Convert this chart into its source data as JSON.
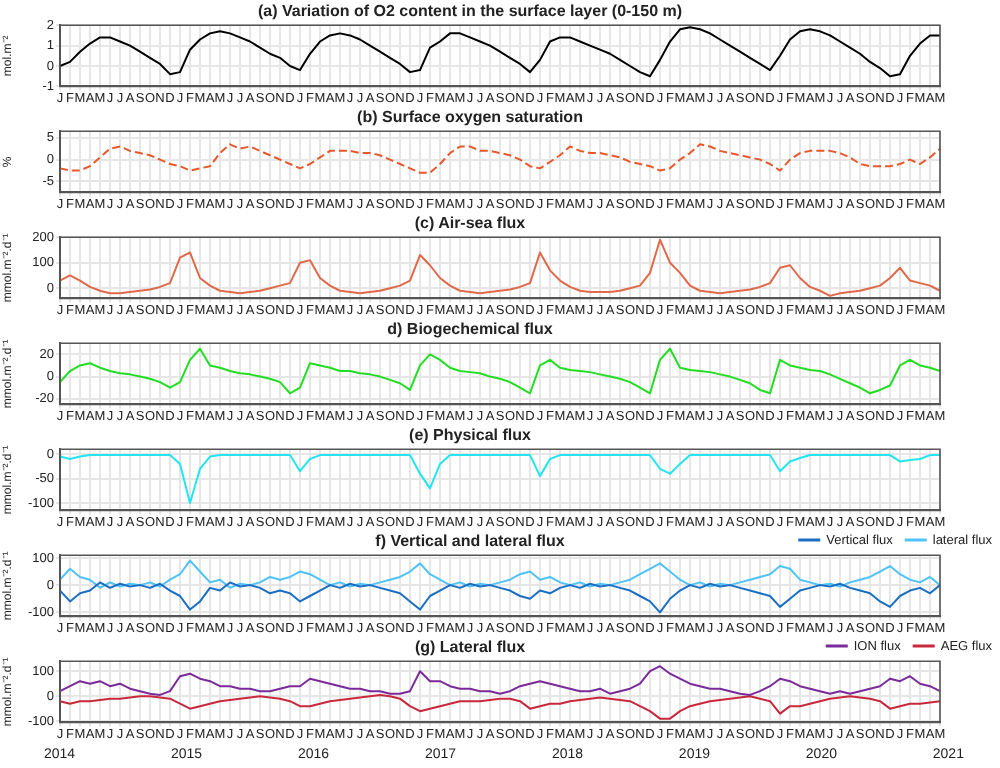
{
  "chart_data": [
    {
      "type": "line",
      "title": "(a) Variation of O2 content in the surface layer (0-150 m)",
      "ylabel": "mol.m⁻²",
      "color": "#000000",
      "grid": true,
      "categories": [
        "J",
        "F",
        "M",
        "A",
        "M",
        "J",
        "J",
        "A",
        "S",
        "O",
        "N",
        "D",
        "J",
        "F",
        "M",
        "A",
        "M",
        "J",
        "J",
        "A",
        "S",
        "O",
        "N",
        "D",
        "J",
        "F",
        "M",
        "A",
        "M",
        "J",
        "J",
        "A",
        "S",
        "O",
        "N",
        "D",
        "J",
        "F",
        "M",
        "A",
        "M",
        "J",
        "J",
        "A",
        "S",
        "O",
        "N",
        "D",
        "J",
        "F",
        "M",
        "A",
        "M",
        "J",
        "J",
        "A",
        "S",
        "O",
        "N",
        "D",
        "J",
        "F",
        "M",
        "A",
        "M",
        "J",
        "J",
        "A",
        "S",
        "O",
        "N",
        "D",
        "J",
        "F",
        "M",
        "A",
        "M",
        "J",
        "J",
        "A",
        "S",
        "O",
        "N",
        "D",
        "J",
        "F",
        "M",
        "A",
        "M"
      ],
      "values": [
        0.0,
        0.2,
        0.7,
        1.1,
        1.4,
        1.4,
        1.2,
        1.0,
        0.7,
        0.4,
        0.1,
        -0.4,
        -0.3,
        0.8,
        1.3,
        1.6,
        1.7,
        1.6,
        1.4,
        1.2,
        0.9,
        0.6,
        0.4,
        0.0,
        -0.2,
        0.6,
        1.2,
        1.5,
        1.6,
        1.5,
        1.3,
        1.0,
        0.7,
        0.4,
        0.1,
        -0.3,
        -0.2,
        0.9,
        1.2,
        1.6,
        1.6,
        1.4,
        1.2,
        1.0,
        0.7,
        0.4,
        0.1,
        -0.3,
        0.3,
        1.2,
        1.4,
        1.4,
        1.2,
        1.0,
        0.8,
        0.6,
        0.3,
        0.0,
        -0.3,
        -0.5,
        0.3,
        1.2,
        1.8,
        1.9,
        1.8,
        1.6,
        1.3,
        1.0,
        0.7,
        0.4,
        0.1,
        -0.2,
        0.5,
        1.3,
        1.7,
        1.8,
        1.7,
        1.5,
        1.2,
        0.9,
        0.6,
        0.2,
        -0.1,
        -0.5,
        -0.4,
        0.5,
        1.1,
        1.5,
        1.5
      ],
      "ylim": [
        -1,
        2
      ],
      "yticks": [
        -1,
        0,
        1,
        2
      ]
    },
    {
      "type": "line",
      "title": "(b) Surface oxygen saturation",
      "ylabel": "%",
      "color": "#e8582a",
      "line_style": "dashed",
      "grid": true,
      "categories": [
        "J",
        "F",
        "M",
        "A",
        "M",
        "J",
        "J",
        "A",
        "S",
        "O",
        "N",
        "D",
        "J",
        "F",
        "M",
        "A",
        "M",
        "J",
        "J",
        "A",
        "S",
        "O",
        "N",
        "D",
        "J",
        "F",
        "M",
        "A",
        "M",
        "J",
        "J",
        "A",
        "S",
        "O",
        "N",
        "D",
        "J",
        "F",
        "M",
        "A",
        "M",
        "J",
        "J",
        "A",
        "S",
        "O",
        "N",
        "D",
        "J",
        "F",
        "M",
        "A",
        "M",
        "J",
        "J",
        "A",
        "S",
        "O",
        "N",
        "D",
        "J",
        "F",
        "M",
        "A",
        "M",
        "J",
        "J",
        "A",
        "S",
        "O",
        "N",
        "D",
        "J",
        "F",
        "M",
        "A",
        "M",
        "J",
        "J",
        "A",
        "S",
        "O",
        "N",
        "D",
        "J",
        "F",
        "M",
        "A",
        "M"
      ],
      "values": [
        -2,
        -2.5,
        -2.5,
        -1.5,
        0.5,
        2.5,
        3,
        2,
        1.5,
        1,
        0,
        -1,
        -1.5,
        -2.5,
        -2,
        -1.5,
        1.5,
        3.5,
        2.5,
        3,
        2,
        1,
        0,
        -1,
        -2,
        -1,
        0.5,
        2,
        2,
        2,
        1.5,
        1.5,
        1,
        0,
        -1,
        -2,
        -3,
        -3,
        -1,
        1.5,
        3,
        3,
        2,
        2,
        1.5,
        1,
        0,
        -1.5,
        -2,
        -0.5,
        1,
        3,
        2,
        1.5,
        1.5,
        1,
        0.5,
        -0.5,
        -1,
        -1.5,
        -2.5,
        -2,
        0,
        1.5,
        3.5,
        3,
        2,
        1.5,
        1,
        0.5,
        0,
        -1,
        -2.5,
        0,
        1.5,
        2,
        2,
        2,
        1.5,
        0.5,
        -1,
        -1.5,
        -1.5,
        -1.5,
        -1,
        0,
        -1,
        0.5,
        2.5
      ],
      "ylim": [
        -7.5,
        6.5
      ],
      "yticks": [
        -5,
        0,
        5
      ]
    },
    {
      "type": "line",
      "title": "(c) Air-sea flux",
      "ylabel": "mmol.m⁻².d⁻¹",
      "color": "#e0694a",
      "grid": true,
      "categories": [
        "J",
        "F",
        "M",
        "A",
        "M",
        "J",
        "J",
        "A",
        "S",
        "O",
        "N",
        "D",
        "J",
        "F",
        "M",
        "A",
        "M",
        "J",
        "J",
        "A",
        "S",
        "O",
        "N",
        "D",
        "J",
        "F",
        "M",
        "A",
        "M",
        "J",
        "J",
        "A",
        "S",
        "O",
        "N",
        "D",
        "J",
        "F",
        "M",
        "A",
        "M",
        "J",
        "J",
        "A",
        "S",
        "O",
        "N",
        "D",
        "J",
        "F",
        "M",
        "A",
        "M",
        "J",
        "J",
        "A",
        "S",
        "O",
        "N",
        "D",
        "J",
        "F",
        "M",
        "A",
        "M",
        "J",
        "J",
        "A",
        "S",
        "O",
        "N",
        "D",
        "J",
        "F",
        "M",
        "A",
        "M",
        "J",
        "J",
        "A",
        "S",
        "O",
        "N",
        "D",
        "J",
        "F",
        "M",
        "A",
        "M"
      ],
      "values": [
        30,
        50,
        30,
        5,
        -10,
        -20,
        -20,
        -15,
        -10,
        -5,
        5,
        20,
        120,
        140,
        40,
        10,
        -10,
        -15,
        -20,
        -15,
        -10,
        0,
        10,
        20,
        100,
        110,
        40,
        10,
        -10,
        -15,
        -20,
        -15,
        -10,
        0,
        10,
        30,
        130,
        90,
        40,
        10,
        -10,
        -15,
        -20,
        -15,
        -10,
        -5,
        5,
        20,
        140,
        70,
        30,
        5,
        -10,
        -15,
        -15,
        -15,
        -10,
        0,
        10,
        60,
        190,
        100,
        60,
        10,
        -10,
        -15,
        -20,
        -15,
        -10,
        -5,
        5,
        20,
        80,
        90,
        40,
        5,
        -10,
        -30,
        -20,
        -15,
        -10,
        0,
        10,
        40,
        80,
        30,
        20,
        10,
        -10
      ],
      "ylim": [
        -40,
        200
      ],
      "yticks": [
        0,
        100,
        200
      ]
    },
    {
      "type": "line",
      "title": "d) Biogechemical flux",
      "ylabel": "mmol.m⁻².d⁻¹",
      "color": "#22dd22",
      "grid": true,
      "categories": [
        "J",
        "F",
        "M",
        "A",
        "M",
        "J",
        "J",
        "A",
        "S",
        "O",
        "N",
        "D",
        "J",
        "F",
        "M",
        "A",
        "M",
        "J",
        "J",
        "A",
        "S",
        "O",
        "N",
        "D",
        "J",
        "F",
        "M",
        "A",
        "M",
        "J",
        "J",
        "A",
        "S",
        "O",
        "N",
        "D",
        "J",
        "F",
        "M",
        "A",
        "M",
        "J",
        "J",
        "A",
        "S",
        "O",
        "N",
        "D",
        "J",
        "F",
        "M",
        "A",
        "M",
        "J",
        "J",
        "A",
        "S",
        "O",
        "N",
        "D",
        "J",
        "F",
        "M",
        "A",
        "M",
        "J",
        "J",
        "A",
        "S",
        "O",
        "N",
        "D",
        "J",
        "F",
        "M",
        "A",
        "M",
        "J",
        "J",
        "A",
        "S",
        "O",
        "N",
        "D",
        "J",
        "F",
        "M",
        "A",
        "M"
      ],
      "values": [
        -5,
        5,
        10,
        12,
        8,
        5,
        3,
        2,
        0,
        -2,
        -5,
        -10,
        -5,
        15,
        25,
        10,
        8,
        5,
        3,
        2,
        0,
        -2,
        -5,
        -15,
        -10,
        12,
        10,
        8,
        5,
        5,
        3,
        2,
        0,
        -3,
        -6,
        -12,
        10,
        20,
        15,
        8,
        5,
        4,
        3,
        0,
        -2,
        -5,
        -10,
        -15,
        10,
        15,
        8,
        6,
        5,
        4,
        2,
        0,
        -2,
        -5,
        -10,
        -15,
        15,
        25,
        8,
        6,
        5,
        4,
        2,
        0,
        -3,
        -6,
        -12,
        -15,
        15,
        10,
        8,
        6,
        5,
        2,
        -2,
        -6,
        -10,
        -15,
        -12,
        -8,
        10,
        15,
        10,
        8,
        5
      ],
      "ylim": [
        -25,
        30
      ],
      "yticks": [
        -20,
        0,
        20
      ]
    },
    {
      "type": "line",
      "title": "(e) Physical flux",
      "ylabel": "mmol.m⁻².d⁻¹",
      "color": "#22e5f0",
      "grid": true,
      "categories": [
        "J",
        "F",
        "M",
        "A",
        "M",
        "J",
        "J",
        "A",
        "S",
        "O",
        "N",
        "D",
        "J",
        "F",
        "M",
        "A",
        "M",
        "J",
        "J",
        "A",
        "S",
        "O",
        "N",
        "D",
        "J",
        "F",
        "M",
        "A",
        "M",
        "J",
        "J",
        "A",
        "S",
        "O",
        "N",
        "D",
        "J",
        "F",
        "M",
        "A",
        "M",
        "J",
        "J",
        "A",
        "S",
        "O",
        "N",
        "D",
        "J",
        "F",
        "M",
        "A",
        "M",
        "J",
        "J",
        "A",
        "S",
        "O",
        "N",
        "D",
        "J",
        "F",
        "M",
        "A",
        "M",
        "J",
        "J",
        "A",
        "S",
        "O",
        "N",
        "D",
        "J",
        "F",
        "M",
        "A",
        "M",
        "J",
        "J",
        "A",
        "S",
        "O",
        "N",
        "D",
        "J",
        "F",
        "M",
        "A",
        "M"
      ],
      "values": [
        -5,
        -10,
        -5,
        -2,
        -2,
        -2,
        -2,
        -2,
        -2,
        -2,
        -2,
        -2,
        -20,
        -100,
        -30,
        -5,
        -2,
        -2,
        -2,
        -2,
        -2,
        -2,
        -2,
        -2,
        -35,
        -10,
        -2,
        -2,
        -2,
        -2,
        -2,
        -2,
        -2,
        -2,
        -2,
        -2,
        -40,
        -70,
        -20,
        -2,
        -2,
        -2,
        -2,
        -2,
        -2,
        -2,
        -2,
        -2,
        -45,
        -10,
        -2,
        -2,
        -2,
        -2,
        -2,
        -2,
        -2,
        -2,
        -2,
        -2,
        -30,
        -40,
        -20,
        -2,
        -2,
        -2,
        -2,
        -2,
        -2,
        -2,
        -2,
        -2,
        -35,
        -15,
        -8,
        -2,
        -2,
        -2,
        -2,
        -2,
        -2,
        -2,
        -2,
        -2,
        -15,
        -12,
        -10,
        -2,
        -2
      ],
      "ylim": [
        -115,
        10
      ],
      "yticks": [
        -100,
        -50,
        0
      ]
    },
    {
      "type": "line",
      "title": "f) Vertical and lateral flux",
      "ylabel": "mmol.m⁻².d⁻¹",
      "legend": "top right",
      "grid": true,
      "categories": [
        "J",
        "F",
        "M",
        "A",
        "M",
        "J",
        "J",
        "A",
        "S",
        "O",
        "N",
        "D",
        "J",
        "F",
        "M",
        "A",
        "M",
        "J",
        "J",
        "A",
        "S",
        "O",
        "N",
        "D",
        "J",
        "F",
        "M",
        "A",
        "M",
        "J",
        "J",
        "A",
        "S",
        "O",
        "N",
        "D",
        "J",
        "F",
        "M",
        "A",
        "M",
        "J",
        "J",
        "A",
        "S",
        "O",
        "N",
        "D",
        "J",
        "F",
        "M",
        "A",
        "M",
        "J",
        "J",
        "A",
        "S",
        "O",
        "N",
        "D",
        "J",
        "F",
        "M",
        "A",
        "M",
        "J",
        "J",
        "A",
        "S",
        "O",
        "N",
        "D",
        "J",
        "F",
        "M",
        "A",
        "M",
        "J",
        "J",
        "A",
        "S",
        "O",
        "N",
        "D",
        "J",
        "F",
        "M",
        "A",
        "M"
      ],
      "series": [
        {
          "name": "Vertical flux",
          "color": "#1a6fc4",
          "values": [
            -20,
            -60,
            -30,
            -20,
            10,
            -10,
            5,
            -5,
            0,
            -10,
            5,
            -20,
            -40,
            -90,
            -60,
            -10,
            -20,
            10,
            -5,
            0,
            -10,
            -30,
            -20,
            -30,
            -60,
            -40,
            -20,
            0,
            -10,
            5,
            -5,
            0,
            -10,
            -20,
            -30,
            -60,
            -90,
            -40,
            -20,
            0,
            -10,
            5,
            -5,
            0,
            -10,
            -20,
            -40,
            -50,
            -20,
            -30,
            -10,
            0,
            -10,
            5,
            -5,
            0,
            -10,
            -20,
            -40,
            -60,
            -100,
            -50,
            -20,
            0,
            -10,
            5,
            -5,
            0,
            -10,
            -20,
            -30,
            -40,
            -80,
            -50,
            -20,
            -10,
            0,
            -5,
            5,
            -10,
            -20,
            -30,
            -60,
            -80,
            -40,
            -20,
            -10,
            -30,
            0
          ]
        },
        {
          "name": "lateral flux",
          "color": "#4fc3f7",
          "values": [
            20,
            60,
            30,
            20,
            -10,
            10,
            -5,
            5,
            0,
            10,
            -5,
            20,
            40,
            90,
            50,
            10,
            20,
            -10,
            5,
            0,
            10,
            30,
            20,
            30,
            50,
            40,
            20,
            0,
            10,
            -5,
            5,
            0,
            10,
            20,
            30,
            50,
            80,
            40,
            20,
            0,
            10,
            -5,
            5,
            0,
            10,
            20,
            40,
            50,
            20,
            30,
            10,
            0,
            10,
            -5,
            5,
            0,
            10,
            20,
            40,
            60,
            80,
            50,
            20,
            0,
            10,
            -5,
            5,
            0,
            10,
            20,
            30,
            40,
            70,
            60,
            20,
            10,
            0,
            5,
            -5,
            10,
            20,
            30,
            50,
            70,
            40,
            20,
            10,
            30,
            0
          ]
        }
      ],
      "ylim": [
        -115,
        110
      ],
      "yticks": [
        -100,
        0,
        100
      ]
    },
    {
      "type": "line",
      "title": "(g) Lateral flux",
      "ylabel": "mmol.m⁻².d⁻¹",
      "legend": "top right",
      "grid": true,
      "categories": [
        "J",
        "F",
        "M",
        "A",
        "M",
        "J",
        "J",
        "A",
        "S",
        "O",
        "N",
        "D",
        "J",
        "F",
        "M",
        "A",
        "M",
        "J",
        "J",
        "A",
        "S",
        "O",
        "N",
        "D",
        "J",
        "F",
        "M",
        "A",
        "M",
        "J",
        "J",
        "A",
        "S",
        "O",
        "N",
        "D",
        "J",
        "F",
        "M",
        "A",
        "M",
        "J",
        "J",
        "A",
        "S",
        "O",
        "N",
        "D",
        "J",
        "F",
        "M",
        "A",
        "M",
        "J",
        "J",
        "A",
        "S",
        "O",
        "N",
        "D",
        "J",
        "F",
        "M",
        "A",
        "M",
        "J",
        "J",
        "A",
        "S",
        "O",
        "N",
        "D",
        "J",
        "F",
        "M",
        "A",
        "M",
        "J",
        "J",
        "A",
        "S",
        "O",
        "N",
        "D",
        "J",
        "F",
        "M",
        "A",
        "M"
      ],
      "series": [
        {
          "name": "ION flux",
          "color": "#7b2a9a",
          "values": [
            20,
            40,
            60,
            50,
            60,
            40,
            50,
            30,
            20,
            10,
            5,
            20,
            80,
            90,
            70,
            60,
            40,
            40,
            30,
            30,
            20,
            20,
            30,
            40,
            40,
            70,
            60,
            50,
            40,
            30,
            30,
            20,
            20,
            10,
            10,
            20,
            100,
            60,
            60,
            40,
            30,
            30,
            20,
            20,
            10,
            20,
            40,
            50,
            60,
            50,
            40,
            30,
            20,
            20,
            30,
            10,
            20,
            30,
            50,
            100,
            120,
            90,
            70,
            50,
            40,
            30,
            30,
            20,
            10,
            5,
            20,
            40,
            70,
            60,
            40,
            30,
            20,
            10,
            20,
            10,
            20,
            30,
            40,
            70,
            60,
            80,
            50,
            40,
            20
          ]
        },
        {
          "name": "AEG flux",
          "color": "#c8283c",
          "values": [
            -20,
            -30,
            -20,
            -20,
            -15,
            -10,
            -10,
            -5,
            0,
            0,
            -5,
            -10,
            -30,
            -50,
            -40,
            -30,
            -20,
            -15,
            -10,
            -5,
            0,
            -5,
            -10,
            -20,
            -40,
            -40,
            -30,
            -20,
            -15,
            -10,
            -5,
            0,
            5,
            0,
            -10,
            -40,
            -60,
            -50,
            -40,
            -30,
            -20,
            -20,
            -20,
            -15,
            -10,
            -10,
            -20,
            -50,
            -40,
            -30,
            -30,
            -20,
            -15,
            -10,
            -5,
            -10,
            -15,
            -20,
            -40,
            -60,
            -90,
            -90,
            -60,
            -40,
            -30,
            -20,
            -15,
            -10,
            -5,
            0,
            -10,
            -20,
            -70,
            -40,
            -40,
            -30,
            -20,
            -10,
            -5,
            0,
            -5,
            -10,
            -20,
            -50,
            -40,
            -30,
            -30,
            -25,
            -20
          ]
        }
      ],
      "ylim": [
        -105,
        140
      ],
      "yticks": [
        -100,
        0,
        100
      ],
      "annotations": [
        "2014",
        "2015",
        "2016",
        "2017",
        "2018",
        "2019",
        "2020",
        "2021"
      ]
    }
  ]
}
